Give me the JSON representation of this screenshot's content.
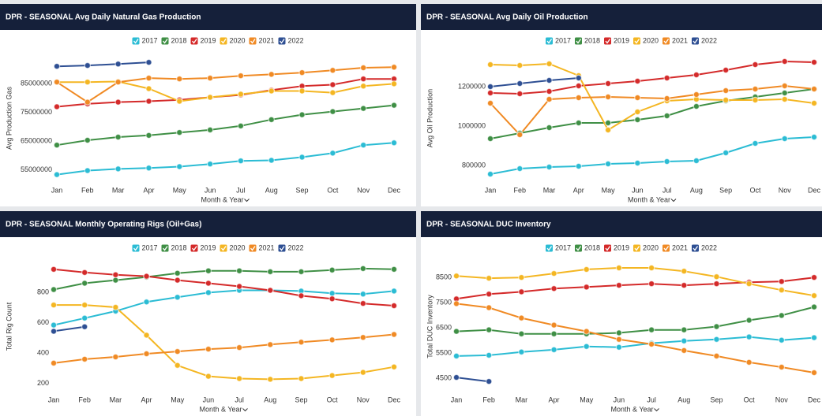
{
  "chart_data": [
    {
      "type": "line",
      "title": "DPR - SEASONAL Avg Daily Natural Gas Production",
      "x_label": "Month & Year",
      "y_label": "Avg Production Gas",
      "categories": [
        "Jan",
        "Feb",
        "Mar",
        "Apr",
        "May",
        "Jun",
        "Jul",
        "Aug",
        "Sep",
        "Oct",
        "Nov",
        "Dec"
      ],
      "ylim": [
        51000000,
        95000000
      ],
      "yticks": [
        55000000,
        65000000,
        75000000,
        85000000
      ],
      "series": [
        {
          "name": "2017",
          "color": "#2bbcd4",
          "values": [
            53300000,
            54700000,
            55300000,
            55600000,
            56100000,
            57000000,
            58100000,
            58300000,
            59400000,
            60800000,
            63600000,
            64400000
          ]
        },
        {
          "name": "2018",
          "color": "#3f8f45",
          "values": [
            63600000,
            65300000,
            66400000,
            67000000,
            68000000,
            68900000,
            70300000,
            72500000,
            74200000,
            75300000,
            76400000,
            77500000
          ]
        },
        {
          "name": "2019",
          "color": "#d42a2a",
          "values": [
            77000000,
            78000000,
            78600000,
            78900000,
            79400000,
            80300000,
            81100000,
            82800000,
            84200000,
            84700000,
            86700000,
            86700000
          ]
        },
        {
          "name": "2020",
          "color": "#f4b622",
          "values": [
            85600000,
            85600000,
            85800000,
            83300000,
            78900000,
            80300000,
            81400000,
            82500000,
            82500000,
            81900000,
            84200000,
            85000000
          ]
        },
        {
          "name": "2021",
          "color": "#f08a24",
          "values": [
            85600000,
            78600000,
            85600000,
            87000000,
            86700000,
            87000000,
            87800000,
            88300000,
            88900000,
            89700000,
            90600000,
            90800000
          ]
        },
        {
          "name": "2022",
          "color": "#2e4f93",
          "values": [
            91100000,
            91400000,
            91900000,
            92500000,
            null,
            null,
            null,
            null,
            null,
            null,
            null,
            null
          ]
        }
      ]
    },
    {
      "type": "line",
      "title": "DPR - SEASONAL Avg Daily Oil Production",
      "x_label": "Month & Year",
      "y_label": "Avg Oil Production",
      "categories": [
        "Jan",
        "Feb",
        "Mar",
        "Apr",
        "May",
        "Jun",
        "Jul",
        "Aug",
        "Sep",
        "Oct",
        "Nov",
        "Dec"
      ],
      "ylim": [
        720000,
        1360000
      ],
      "yticks": [
        800000,
        1000000,
        1200000
      ],
      "series": [
        {
          "name": "2017",
          "color": "#2bbcd4",
          "values": [
            756000,
            784000,
            792000,
            796000,
            808000,
            812000,
            820000,
            824000,
            864000,
            912000,
            936000,
            944000
          ]
        },
        {
          "name": "2018",
          "color": "#3f8f45",
          "values": [
            936000,
            964000,
            992000,
            1016000,
            1016000,
            1032000,
            1052000,
            1100000,
            1128000,
            1148000,
            1168000,
            1188000
          ]
        },
        {
          "name": "2019",
          "color": "#d42a2a",
          "values": [
            1168000,
            1164000,
            1176000,
            1204000,
            1216000,
            1228000,
            1244000,
            1260000,
            1284000,
            1312000,
            1328000,
            1324000
          ]
        },
        {
          "name": "2020",
          "color": "#f4b622",
          "values": [
            1312000,
            1308000,
            1316000,
            1256000,
            980000,
            1072000,
            1128000,
            1136000,
            1132000,
            1132000,
            1136000,
            1116000
          ]
        },
        {
          "name": "2021",
          "color": "#f08a24",
          "values": [
            1116000,
            956000,
            1136000,
            1144000,
            1148000,
            1144000,
            1140000,
            1160000,
            1180000,
            1188000,
            1204000,
            1188000
          ]
        },
        {
          "name": "2022",
          "color": "#2e4f93",
          "values": [
            1200000,
            1216000,
            1232000,
            1244000,
            null,
            null,
            null,
            null,
            null,
            null,
            null,
            null
          ]
        }
      ]
    },
    {
      "type": "line",
      "title": "DPR - SEASONAL Monthly Operating Rigs (Oil+Gas)",
      "x_label": "Month & Year",
      "y_label": "Total Rig Count",
      "categories": [
        "Jan",
        "Feb",
        "Mar",
        "Apr",
        "May",
        "Jun",
        "Jul",
        "Aug",
        "Sep",
        "Oct",
        "Nov",
        "Dec"
      ],
      "ylim": [
        150,
        1000
      ],
      "yticks": [
        200,
        400,
        600,
        800
      ],
      "series": [
        {
          "name": "2017",
          "color": "#2bbcd4",
          "values": [
            585,
            631,
            677,
            738,
            769,
            800,
            815,
            815,
            810,
            795,
            790,
            810
          ]
        },
        {
          "name": "2018",
          "color": "#3f8f45",
          "values": [
            820,
            862,
            882,
            903,
            928,
            944,
            944,
            938,
            938,
            949,
            959,
            954
          ]
        },
        {
          "name": "2019",
          "color": "#d42a2a",
          "values": [
            954,
            933,
            918,
            908,
            882,
            862,
            841,
            815,
            779,
            759,
            728,
            713
          ]
        },
        {
          "name": "2020",
          "color": "#f4b622",
          "values": [
            718,
            718,
            703,
            518,
            318,
            246,
            231,
            226,
            231,
            251,
            272,
            308
          ]
        },
        {
          "name": "2021",
          "color": "#f08a24",
          "values": [
            333,
            359,
            374,
            395,
            410,
            426,
            436,
            456,
            472,
            487,
            503,
            523
          ]
        },
        {
          "name": "2022",
          "color": "#2e4f93",
          "values": [
            544,
            574,
            null,
            null,
            null,
            null,
            null,
            null,
            null,
            null,
            null,
            null
          ]
        }
      ]
    },
    {
      "type": "line",
      "title": "DPR - SEASONAL DUC Inventory",
      "x_label": "Month & Year",
      "y_label": "Total DUC Inventory",
      "categories": [
        "Jan",
        "Feb",
        "Mar",
        "Apr",
        "May",
        "Jun",
        "Jul",
        "Aug",
        "Sep",
        "Oct",
        "Nov",
        "Dec"
      ],
      "ylim": [
        4000,
        9100
      ],
      "yticks": [
        4500,
        5500,
        6500,
        7500,
        8500
      ],
      "series": [
        {
          "name": "2017",
          "color": "#2bbcd4",
          "values": [
            5380,
            5410,
            5540,
            5630,
            5760,
            5730,
            5890,
            5980,
            6040,
            6140,
            6010,
            6110
          ]
        },
        {
          "name": "2018",
          "color": "#3f8f45",
          "values": [
            6360,
            6420,
            6260,
            6260,
            6260,
            6300,
            6420,
            6420,
            6550,
            6800,
            6990,
            7330
          ]
        },
        {
          "name": "2019",
          "color": "#d42a2a",
          "values": [
            7650,
            7840,
            7930,
            8060,
            8120,
            8190,
            8250,
            8190,
            8250,
            8310,
            8340,
            8500
          ]
        },
        {
          "name": "2020",
          "color": "#f4b622",
          "values": [
            8560,
            8470,
            8500,
            8660,
            8820,
            8880,
            8880,
            8750,
            8530,
            8250,
            8000,
            7780
          ]
        },
        {
          "name": "2021",
          "color": "#f08a24",
          "values": [
            7460,
            7300,
            6890,
            6610,
            6360,
            6040,
            5850,
            5600,
            5380,
            5130,
            4940,
            4720
          ]
        },
        {
          "name": "2022",
          "color": "#2e4f93",
          "values": [
            4530,
            4370,
            null,
            null,
            null,
            null,
            null,
            null,
            null,
            null,
            null,
            null
          ]
        }
      ]
    }
  ]
}
